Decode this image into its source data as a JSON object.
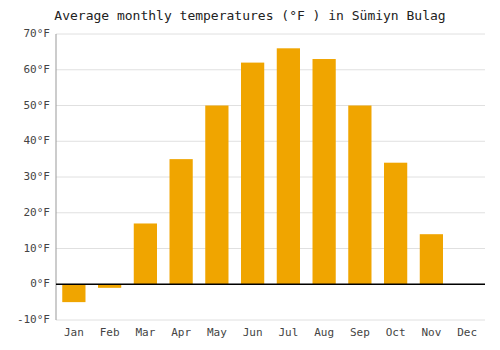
{
  "chart_data": {
    "type": "bar",
    "title": "Average monthly temperatures (°F ) in Sümiyn Bulag",
    "categories": [
      "Jan",
      "Feb",
      "Mar",
      "Apr",
      "May",
      "Jun",
      "Jul",
      "Aug",
      "Sep",
      "Oct",
      "Nov",
      "Dec"
    ],
    "values": [
      -5,
      -1,
      17,
      35,
      50,
      62,
      66,
      63,
      50,
      34,
      14,
      0
    ],
    "color": "#F0A500",
    "ylim": [
      -10,
      70
    ],
    "yticks": [
      {
        "value": -10,
        "label": "-10°F"
      },
      {
        "value": 0,
        "label": "0°F"
      },
      {
        "value": 10,
        "label": "10°F"
      },
      {
        "value": 20,
        "label": "20°F"
      },
      {
        "value": 30,
        "label": "30°F"
      },
      {
        "value": 40,
        "label": "40°F"
      },
      {
        "value": 50,
        "label": "50°F"
      },
      {
        "value": 60,
        "label": "60°F"
      },
      {
        "value": 70,
        "label": "70°F"
      }
    ],
    "grid": true
  }
}
